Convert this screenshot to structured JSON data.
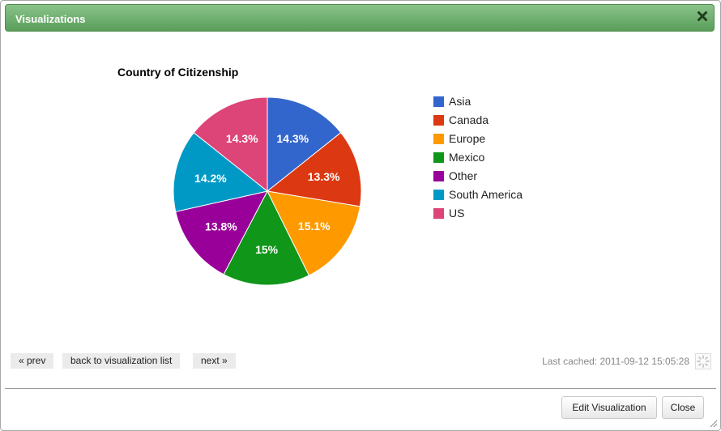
{
  "window": {
    "title": "Visualizations",
    "close_icon": "close-icon"
  },
  "chart_data": {
    "type": "pie",
    "title": "Country of Citizenship",
    "categories": [
      "Asia",
      "Canada",
      "Europe",
      "Mexico",
      "Other",
      "South America",
      "US"
    ],
    "values": [
      14.3,
      13.3,
      15.1,
      15,
      13.8,
      14.2,
      14.3
    ],
    "slice_labels": [
      "14.3%",
      "13.3%",
      "15.1%",
      "15%",
      "13.8%",
      "14.2%",
      "14.3%"
    ],
    "colors": [
      "#3366cc",
      "#dc3912",
      "#ff9900",
      "#109618",
      "#990099",
      "#0099c6",
      "#dd4477"
    ],
    "legend_position": "right"
  },
  "nav": {
    "prev": "« prev",
    "back": "back to visualization list",
    "next": "next »"
  },
  "status": {
    "cached": "Last cached: 2011-09-12 15:05:28",
    "spinner_icon": "loading-spinner-icon"
  },
  "footer": {
    "edit": "Edit Visualization",
    "close": "Close"
  }
}
